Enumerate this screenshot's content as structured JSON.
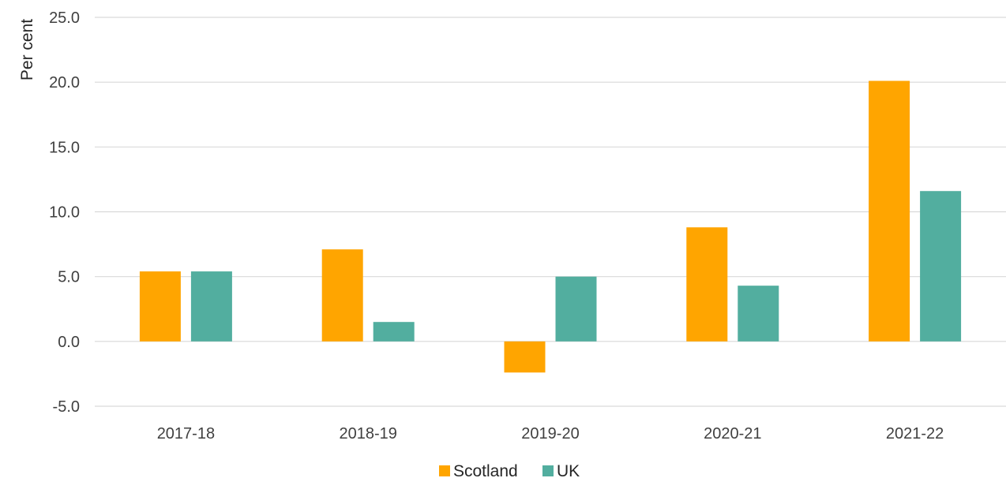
{
  "chart_data": {
    "type": "bar",
    "categories": [
      "2017-18",
      "2018-19",
      "2019-20",
      "2020-21",
      "2021-22"
    ],
    "series": [
      {
        "name": "Scotland",
        "color": "#ffa500",
        "values": [
          5.4,
          7.1,
          -2.4,
          8.8,
          20.1
        ]
      },
      {
        "name": "UK",
        "color": "#52ae9f",
        "values": [
          5.4,
          1.5,
          5.0,
          4.3,
          11.6
        ]
      }
    ],
    "title": "",
    "xlabel": "",
    "ylabel": "Per cent",
    "ylim": [
      -5,
      25
    ],
    "yticks": [
      "-5.0",
      "0.0",
      "5.0",
      "10.0",
      "15.0",
      "20.0",
      "25.0"
    ],
    "grid": true,
    "legend": "bottom-center"
  }
}
